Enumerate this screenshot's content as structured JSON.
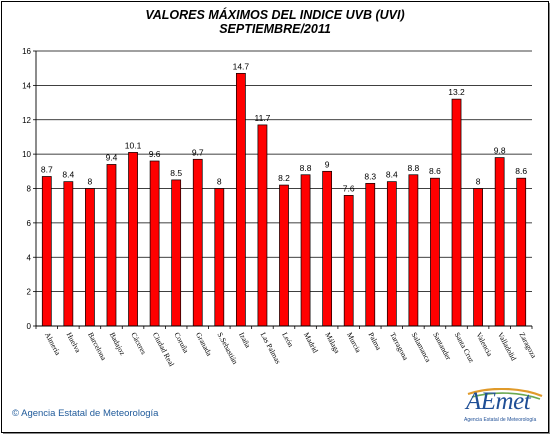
{
  "chart_data": {
    "type": "bar",
    "title": "VALORES MÁXIMOS DEL INDICE UVB (UVI)",
    "subtitle": "SEPTIEMBRE/2011",
    "categories": [
      "Almería",
      "Huelva",
      "Barcelona",
      "Badajoz",
      "Cáceres",
      "Ciudad Real",
      "Coruña",
      "Granada",
      "S.Sebastián",
      "Izaña",
      "Las Palmas",
      "León",
      "Madrid",
      "Málaga",
      "Murcia",
      "Palma",
      "Tarragona",
      "Salamanca",
      "Santander",
      "Santa Cruz",
      "Valencia",
      "Valladolid",
      "Zaragoza"
    ],
    "values": [
      8.7,
      8.4,
      8,
      9.4,
      10.1,
      9.6,
      8.5,
      9.7,
      8,
      14.7,
      11.7,
      8.2,
      8.8,
      9,
      7.6,
      8.3,
      8.4,
      8.8,
      8.6,
      13.2,
      8,
      9.8,
      8.6
    ],
    "data_labels": [
      "8.7",
      "8.4",
      "8",
      "9.4",
      "10.1",
      "9.6",
      "8.5",
      "9.7",
      "8",
      "14.7",
      "11.7",
      "8.2",
      "8.8",
      "9",
      "7.6",
      "8.3",
      "8.4",
      "8.8",
      "8.6",
      "13.2",
      "8",
      "9.8",
      "8.6"
    ],
    "yticks": [
      "0",
      "2",
      "4",
      "6",
      "8",
      "10",
      "12",
      "14",
      "16"
    ],
    "ylim": [
      0,
      16
    ],
    "grid": true,
    "bar_color": "#ff0000",
    "bar_edge_color": "#000000"
  },
  "footer": {
    "credit_symbol": "©",
    "credit_text": "Agencia Estatal de Meteorología"
  },
  "logo": {
    "wordmark": "AEmet",
    "tagline": "Agencia Estatal de Meteorología"
  }
}
